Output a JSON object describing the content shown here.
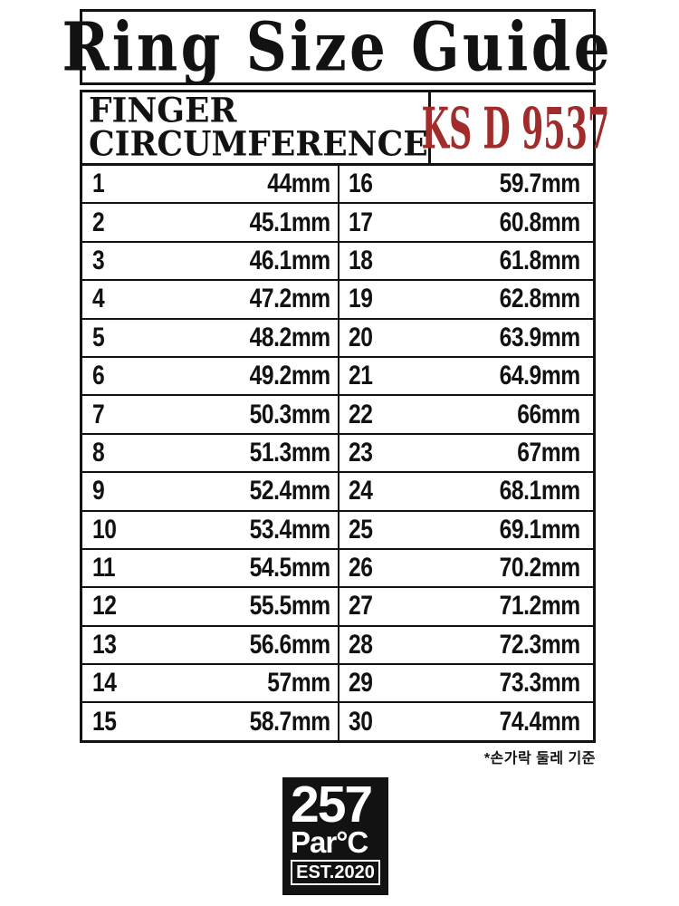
{
  "title": "Ring Size Guide",
  "header": {
    "finger_line1": "FINGER",
    "finger_line2": "CIRCUMFERENCE",
    "standard_label": "KS D 9537"
  },
  "table": {
    "rows": [
      {
        "s1": "1",
        "v1": "44mm",
        "s2": "16",
        "v2": "59.7mm"
      },
      {
        "s1": "2",
        "v1": "45.1mm",
        "s2": "17",
        "v2": "60.8mm"
      },
      {
        "s1": "3",
        "v1": "46.1mm",
        "s2": "18",
        "v2": "61.8mm"
      },
      {
        "s1": "4",
        "v1": "47.2mm",
        "s2": "19",
        "v2": "62.8mm"
      },
      {
        "s1": "5",
        "v1": "48.2mm",
        "s2": "20",
        "v2": "63.9mm"
      },
      {
        "s1": "6",
        "v1": "49.2mm",
        "s2": "21",
        "v2": "64.9mm"
      },
      {
        "s1": "7",
        "v1": "50.3mm",
        "s2": "22",
        "v2": "66mm"
      },
      {
        "s1": "8",
        "v1": "51.3mm",
        "s2": "23",
        "v2": "67mm"
      },
      {
        "s1": "9",
        "v1": "52.4mm",
        "s2": "24",
        "v2": "68.1mm"
      },
      {
        "s1": "10",
        "v1": "53.4mm",
        "s2": "25",
        "v2": "69.1mm"
      },
      {
        "s1": "11",
        "v1": "54.5mm",
        "s2": "26",
        "v2": "70.2mm"
      },
      {
        "s1": "12",
        "v1": "55.5mm",
        "s2": "27",
        "v2": "71.2mm"
      },
      {
        "s1": "13",
        "v1": "56.6mm",
        "s2": "28",
        "v2": "72.3mm"
      },
      {
        "s1": "14",
        "v1": "57mm",
        "s2": "29",
        "v2": "73.3mm"
      },
      {
        "s1": "15",
        "v1": "58.7mm",
        "s2": "30",
        "v2": "74.4mm"
      }
    ]
  },
  "footnote": "*손가락 둘레 기준",
  "logo": {
    "line1": "257",
    "line2": "Par°C",
    "line3": "EST.2020"
  },
  "colors": {
    "standard_red": "#a02c2c",
    "ink": "#121212",
    "logo_bg": "#121212"
  }
}
